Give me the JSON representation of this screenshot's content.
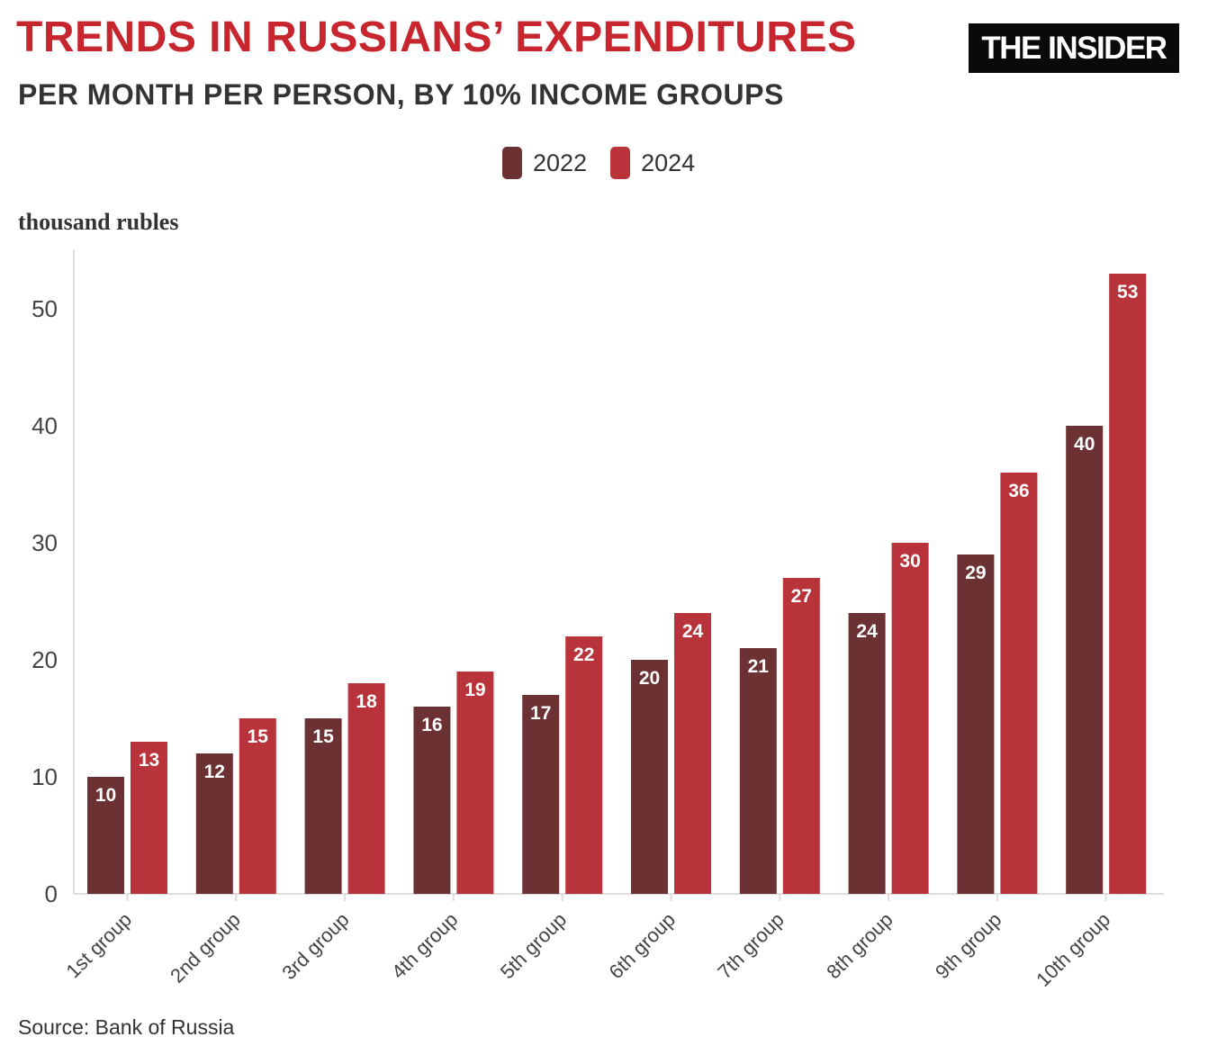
{
  "header": {
    "title": "TRENDS IN RUSSIANS’ EXPENDITURES",
    "subtitle": "PER MONTH PER PERSON, BY 10% INCOME GROUPS",
    "logo_text": "THE INSIDER"
  },
  "colors": {
    "title": "#c8262e",
    "series_2022": "#6b3133",
    "series_2024": "#b8333a",
    "axis": "#dddddd",
    "logo_bg": "#0a0a0a"
  },
  "source": "Source: Bank of Russia",
  "chart_data": {
    "type": "bar",
    "title": "TRENDS IN RUSSIANS’ EXPENDITURES",
    "subtitle": "PER MONTH PER PERSON, BY 10% INCOME GROUPS",
    "ylabel": "thousand rubles",
    "xlabel": "",
    "ylim": [
      0,
      55
    ],
    "yticks": [
      0,
      10,
      20,
      30,
      40,
      50
    ],
    "grid": false,
    "legend_position": "top-center",
    "categories": [
      "1st group",
      "2nd group",
      "3rd group",
      "4th group",
      "5th group",
      "6th group",
      "7th group",
      "8th group",
      "9th group",
      "10th group"
    ],
    "series": [
      {
        "name": "2022",
        "color": "#6b3133",
        "values": [
          10,
          12,
          15,
          16,
          17,
          20,
          21,
          24,
          29,
          40
        ]
      },
      {
        "name": "2024",
        "color": "#b8333a",
        "values": [
          13,
          15,
          18,
          19,
          22,
          24,
          27,
          30,
          36,
          53
        ]
      }
    ]
  }
}
